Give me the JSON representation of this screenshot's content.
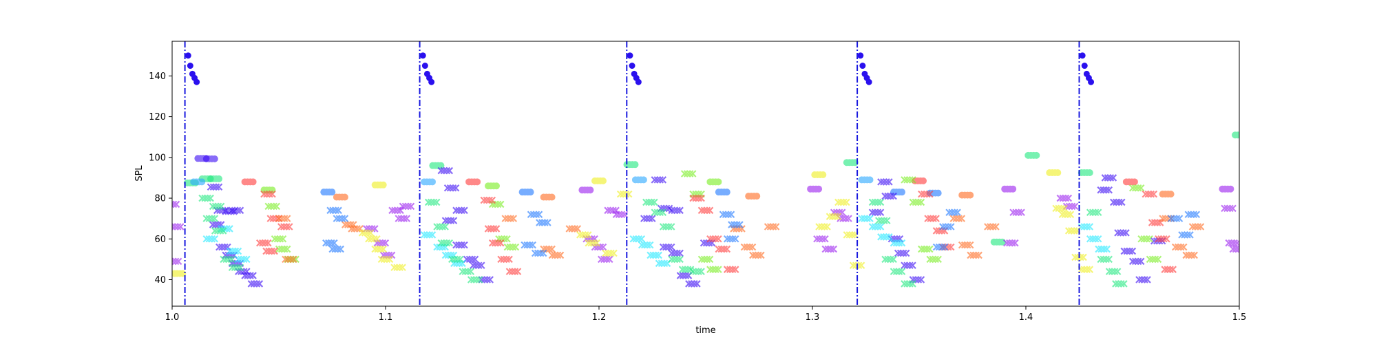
{
  "chart_data": {
    "type": "scatter",
    "title": "",
    "xlabel": "time",
    "ylabel": "SPL",
    "xlim": [
      1.0,
      1.5
    ],
    "ylim": [
      27,
      157
    ],
    "xticks": [
      1.0,
      1.1,
      1.2,
      1.3,
      1.4,
      1.5
    ],
    "xtick_labels": [
      "1.0",
      "1.1",
      "1.2",
      "1.3",
      "1.4",
      "1.5"
    ],
    "yticks": [
      40,
      60,
      80,
      100,
      120,
      140
    ],
    "ytick_labels": [
      "40",
      "60",
      "80",
      "100",
      "120",
      "140"
    ],
    "grid": false,
    "vlines": {
      "style": "dash-dot",
      "color": "#1a1adf",
      "x": [
        1.006,
        1.116,
        1.213,
        1.321,
        1.425
      ]
    },
    "onset_markers": {
      "marker": "circle",
      "color": "#2a10ee",
      "dx": [
        0.0015,
        0.0025,
        0.0035,
        0.0045,
        0.0055
      ],
      "y": [
        150,
        145,
        141,
        139,
        137
      ]
    },
    "scatter_series": [
      {
        "marker": "circle",
        "color": "#3a0af5",
        "points": [
          [
            1.014,
            99.5
          ],
          [
            1.018,
            99.3
          ]
        ]
      },
      {
        "marker": "circle",
        "color": "#1ee87e",
        "points": [
          [
            1.009,
            87.5
          ],
          [
            1.016,
            89.5
          ],
          [
            1.02,
            89.5
          ],
          [
            1.124,
            96
          ],
          [
            1.215,
            96.5
          ],
          [
            1.318,
            97.5
          ],
          [
            1.387,
            58.5
          ],
          [
            1.403,
            101
          ],
          [
            1.428,
            92.5
          ],
          [
            1.5,
            111
          ]
        ]
      },
      {
        "marker": "circle",
        "color": "#ff3a3a",
        "points": [
          [
            1.036,
            88
          ],
          [
            1.141,
            88
          ],
          [
            1.35,
            88.5
          ],
          [
            1.449,
            88
          ]
        ]
      },
      {
        "marker": "circle",
        "color": "#ff6a20",
        "points": [
          [
            1.079,
            80.5
          ],
          [
            1.176,
            80.5
          ],
          [
            1.272,
            81
          ],
          [
            1.372,
            81.5
          ],
          [
            1.466,
            82
          ]
        ]
      },
      {
        "marker": "circle",
        "color": "#1e78ff",
        "points": [
          [
            1.073,
            83
          ],
          [
            1.166,
            83
          ],
          [
            1.258,
            83
          ],
          [
            1.34,
            83
          ],
          [
            1.357,
            82.5
          ]
        ]
      },
      {
        "marker": "circle",
        "color": "#f0f020",
        "points": [
          [
            1.097,
            86.5
          ],
          [
            1.2,
            88.5
          ],
          [
            1.303,
            91.5
          ],
          [
            1.413,
            92.5
          ],
          [
            1.003,
            43
          ]
        ]
      },
      {
        "marker": "circle",
        "color": "#9a1ef0",
        "points": [
          [
            1.194,
            84
          ],
          [
            1.301,
            84.5
          ],
          [
            1.392,
            84.5
          ],
          [
            1.494,
            84.5
          ]
        ]
      },
      {
        "marker": "circle",
        "color": "#78ee20",
        "points": [
          [
            1.15,
            86
          ],
          [
            1.045,
            84
          ],
          [
            1.254,
            88
          ]
        ]
      },
      {
        "marker": "circle",
        "color": "#2aa8ff",
        "points": [
          [
            1.012,
            88
          ],
          [
            1.12,
            88
          ],
          [
            1.219,
            89
          ],
          [
            1.325,
            89
          ]
        ]
      },
      {
        "marker": "x",
        "color": "#3a0af5",
        "points": [
          [
            1.02,
            85.5
          ],
          [
            1.023,
            74
          ],
          [
            1.027,
            73.5
          ],
          [
            1.03,
            74
          ],
          [
            1.021,
            67
          ],
          [
            1.024,
            56
          ],
          [
            1.027,
            52
          ],
          [
            1.03,
            48
          ],
          [
            1.033,
            44
          ],
          [
            1.036,
            42
          ],
          [
            1.039,
            38
          ],
          [
            1.128,
            93.5
          ],
          [
            1.131,
            85
          ],
          [
            1.135,
            74
          ],
          [
            1.13,
            69
          ],
          [
            1.135,
            57
          ],
          [
            1.14,
            50
          ],
          [
            1.143,
            47
          ],
          [
            1.147,
            40
          ],
          [
            1.228,
            89
          ],
          [
            1.231,
            75
          ],
          [
            1.236,
            74
          ],
          [
            1.223,
            70
          ],
          [
            1.232,
            56
          ],
          [
            1.236,
            53
          ],
          [
            1.24,
            42
          ],
          [
            1.244,
            38
          ],
          [
            1.251,
            58
          ],
          [
            1.334,
            88
          ],
          [
            1.336,
            81
          ],
          [
            1.33,
            73
          ],
          [
            1.339,
            60
          ],
          [
            1.342,
            53
          ],
          [
            1.345,
            47
          ],
          [
            1.349,
            40
          ],
          [
            1.439,
            90
          ],
          [
            1.443,
            78
          ],
          [
            1.445,
            63
          ],
          [
            1.448,
            54
          ],
          [
            1.452,
            49
          ],
          [
            1.455,
            40
          ],
          [
            1.437,
            84
          ],
          [
            1.462,
            59
          ]
        ]
      },
      {
        "marker": "x",
        "color": "#1ee8ff",
        "points": [
          [
            1.025,
            65
          ],
          [
            1.018,
            60
          ],
          [
            1.029,
            54
          ],
          [
            1.033,
            50
          ],
          [
            1.12,
            62
          ],
          [
            1.126,
            56
          ],
          [
            1.13,
            52
          ],
          [
            1.134,
            48
          ],
          [
            1.218,
            60
          ],
          [
            1.222,
            57
          ],
          [
            1.226,
            52
          ],
          [
            1.23,
            48
          ],
          [
            1.325,
            70
          ],
          [
            1.33,
            66
          ],
          [
            1.334,
            61
          ],
          [
            1.34,
            58
          ],
          [
            1.428,
            66
          ],
          [
            1.432,
            60
          ],
          [
            1.436,
            55
          ]
        ]
      },
      {
        "marker": "x",
        "color": "#1ee87e",
        "points": [
          [
            1.016,
            80
          ],
          [
            1.021,
            76
          ],
          [
            1.018,
            70
          ],
          [
            1.022,
            64
          ],
          [
            1.026,
            50
          ],
          [
            1.03,
            46
          ],
          [
            1.122,
            78
          ],
          [
            1.126,
            66
          ],
          [
            1.128,
            58
          ],
          [
            1.133,
            50
          ],
          [
            1.138,
            44
          ],
          [
            1.142,
            40
          ],
          [
            1.224,
            78
          ],
          [
            1.228,
            73
          ],
          [
            1.232,
            66
          ],
          [
            1.236,
            50
          ],
          [
            1.241,
            45
          ],
          [
            1.246,
            44
          ],
          [
            1.33,
            78
          ],
          [
            1.333,
            69
          ],
          [
            1.336,
            50
          ],
          [
            1.34,
            44
          ],
          [
            1.345,
            38
          ],
          [
            1.432,
            73
          ],
          [
            1.437,
            50
          ],
          [
            1.441,
            44
          ],
          [
            1.444,
            38
          ]
        ]
      },
      {
        "marker": "x",
        "color": "#78ee20",
        "points": [
          [
            1.047,
            76
          ],
          [
            1.05,
            60
          ],
          [
            1.052,
            55
          ],
          [
            1.056,
            50
          ],
          [
            1.152,
            77
          ],
          [
            1.155,
            60
          ],
          [
            1.159,
            56
          ],
          [
            1.242,
            92
          ],
          [
            1.246,
            82
          ],
          [
            1.25,
            50
          ],
          [
            1.254,
            45
          ],
          [
            1.345,
            89
          ],
          [
            1.349,
            78
          ],
          [
            1.353,
            55
          ],
          [
            1.357,
            50
          ],
          [
            1.452,
            85
          ],
          [
            1.456,
            60
          ],
          [
            1.46,
            50
          ]
        ]
      },
      {
        "marker": "x",
        "color": "#ff3a3a",
        "points": [
          [
            1.045,
            82
          ],
          [
            1.048,
            70
          ],
          [
            1.043,
            58
          ],
          [
            1.046,
            54
          ],
          [
            1.053,
            66
          ],
          [
            1.148,
            79
          ],
          [
            1.15,
            65
          ],
          [
            1.152,
            58
          ],
          [
            1.156,
            50
          ],
          [
            1.16,
            44
          ],
          [
            1.246,
            80
          ],
          [
            1.25,
            74
          ],
          [
            1.254,
            60
          ],
          [
            1.258,
            55
          ],
          [
            1.262,
            45
          ],
          [
            1.353,
            82
          ],
          [
            1.356,
            70
          ],
          [
            1.36,
            64
          ],
          [
            1.363,
            56
          ],
          [
            1.458,
            82
          ],
          [
            1.461,
            68
          ],
          [
            1.464,
            60
          ],
          [
            1.467,
            45
          ]
        ]
      },
      {
        "marker": "x",
        "color": "#ff6a20",
        "points": [
          [
            1.052,
            70
          ],
          [
            1.055,
            50
          ],
          [
            1.083,
            67
          ],
          [
            1.086,
            65
          ],
          [
            1.158,
            70
          ],
          [
            1.176,
            55
          ],
          [
            1.18,
            52
          ],
          [
            1.188,
            65
          ],
          [
            1.265,
            65
          ],
          [
            1.27,
            56
          ],
          [
            1.274,
            52
          ],
          [
            1.281,
            66
          ],
          [
            1.368,
            70
          ],
          [
            1.372,
            57
          ],
          [
            1.376,
            52
          ],
          [
            1.384,
            66
          ],
          [
            1.466,
            70
          ],
          [
            1.472,
            56
          ],
          [
            1.477,
            52
          ],
          [
            1.48,
            66
          ]
        ]
      },
      {
        "marker": "x",
        "color": "#1e78ff",
        "points": [
          [
            1.076,
            74
          ],
          [
            1.079,
            70
          ],
          [
            1.074,
            58
          ],
          [
            1.077,
            55
          ],
          [
            1.17,
            72
          ],
          [
            1.174,
            68
          ],
          [
            1.167,
            57
          ],
          [
            1.172,
            53
          ],
          [
            1.26,
            72
          ],
          [
            1.264,
            67
          ],
          [
            1.262,
            60
          ],
          [
            1.366,
            73
          ],
          [
            1.363,
            66
          ],
          [
            1.36,
            56
          ],
          [
            1.47,
            70
          ],
          [
            1.475,
            62
          ],
          [
            1.478,
            72
          ]
        ]
      },
      {
        "marker": "x",
        "color": "#9a1ef0",
        "points": [
          [
            1.0,
            77
          ],
          [
            1.002,
            66
          ],
          [
            1.001,
            49
          ],
          [
            1.093,
            65
          ],
          [
            1.098,
            58
          ],
          [
            1.101,
            52
          ],
          [
            1.105,
            74
          ],
          [
            1.108,
            70
          ],
          [
            1.11,
            76
          ],
          [
            1.196,
            60
          ],
          [
            1.2,
            56
          ],
          [
            1.203,
            50
          ],
          [
            1.206,
            74
          ],
          [
            1.21,
            72
          ],
          [
            1.304,
            60
          ],
          [
            1.308,
            55
          ],
          [
            1.312,
            73
          ],
          [
            1.315,
            70
          ],
          [
            1.396,
            73
          ],
          [
            1.393,
            58
          ],
          [
            1.418,
            80
          ],
          [
            1.421,
            76
          ],
          [
            1.495,
            75
          ],
          [
            1.497,
            58
          ],
          [
            1.499,
            55
          ]
        ]
      },
      {
        "marker": "x",
        "color": "#f0f020",
        "points": [
          [
            1.091,
            63
          ],
          [
            1.094,
            60
          ],
          [
            1.097,
            55
          ],
          [
            1.1,
            50
          ],
          [
            1.106,
            46
          ],
          [
            1.193,
            62
          ],
          [
            1.197,
            58
          ],
          [
            1.205,
            53
          ],
          [
            1.212,
            82
          ],
          [
            1.305,
            66
          ],
          [
            1.31,
            71
          ],
          [
            1.314,
            78
          ],
          [
            1.318,
            62
          ],
          [
            1.321,
            47
          ],
          [
            1.416,
            75
          ],
          [
            1.419,
            72
          ],
          [
            1.422,
            64
          ],
          [
            1.425,
            51
          ],
          [
            1.428,
            45
          ]
        ]
      }
    ]
  }
}
